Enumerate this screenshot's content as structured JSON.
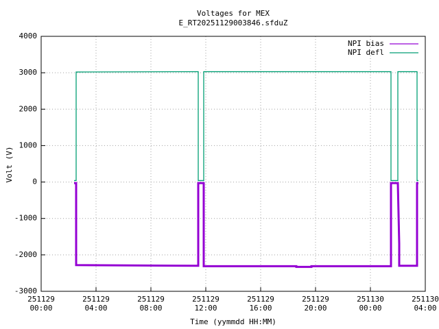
{
  "chart_data": {
    "type": "line",
    "title": "Voltages for MEX",
    "subtitle": "E_RT20251129003846.sfduZ",
    "xlabel": "Time (yymmdd HH:MM)",
    "ylabel": "Volt (V)",
    "xlim": [
      0,
      28
    ],
    "xticks": [
      {
        "value": 0,
        "label": "251129\n00:00"
      },
      {
        "value": 4,
        "label": "251129\n04:00"
      },
      {
        "value": 8,
        "label": "251129\n08:00"
      },
      {
        "value": 12,
        "label": "251129\n12:00"
      },
      {
        "value": 16,
        "label": "251129\n16:00"
      },
      {
        "value": 20,
        "label": "251129\n20:00"
      },
      {
        "value": 24,
        "label": "251130\n00:00"
      },
      {
        "value": 28,
        "label": "251130\n04:00"
      }
    ],
    "ylim": [
      -3000,
      4000
    ],
    "yticks": [
      -3000,
      -2000,
      -1000,
      0,
      1000,
      2000,
      3000,
      4000
    ],
    "grid": true,
    "legend": "top-right",
    "series": [
      {
        "name": "NPI bias",
        "color": "#9400d3",
        "x": [
          2.4,
          2.55,
          2.55,
          11.45,
          11.45,
          11.85,
          11.85,
          18.6,
          18.6,
          19.7,
          19.7,
          25.5,
          25.5,
          26.0,
          26.1,
          26.1,
          27.4,
          27.4,
          27.5
        ],
        "values": [
          -30,
          -30,
          -2280,
          -2300,
          -30,
          -30,
          -2310,
          -2310,
          -2330,
          -2330,
          -2310,
          -2310,
          -30,
          -30,
          -1700,
          -2300,
          -2300,
          -30,
          -30
        ]
      },
      {
        "name": "NPI defl",
        "color": "#009e73",
        "x": [
          2.4,
          2.55,
          2.55,
          11.45,
          11.45,
          11.85,
          11.85,
          25.5,
          25.5,
          26.0,
          26.0,
          27.4,
          27.4,
          27.5
        ],
        "values": [
          40,
          40,
          3020,
          3030,
          40,
          40,
          3030,
          3030,
          40,
          40,
          3030,
          3030,
          40,
          40
        ]
      }
    ]
  }
}
